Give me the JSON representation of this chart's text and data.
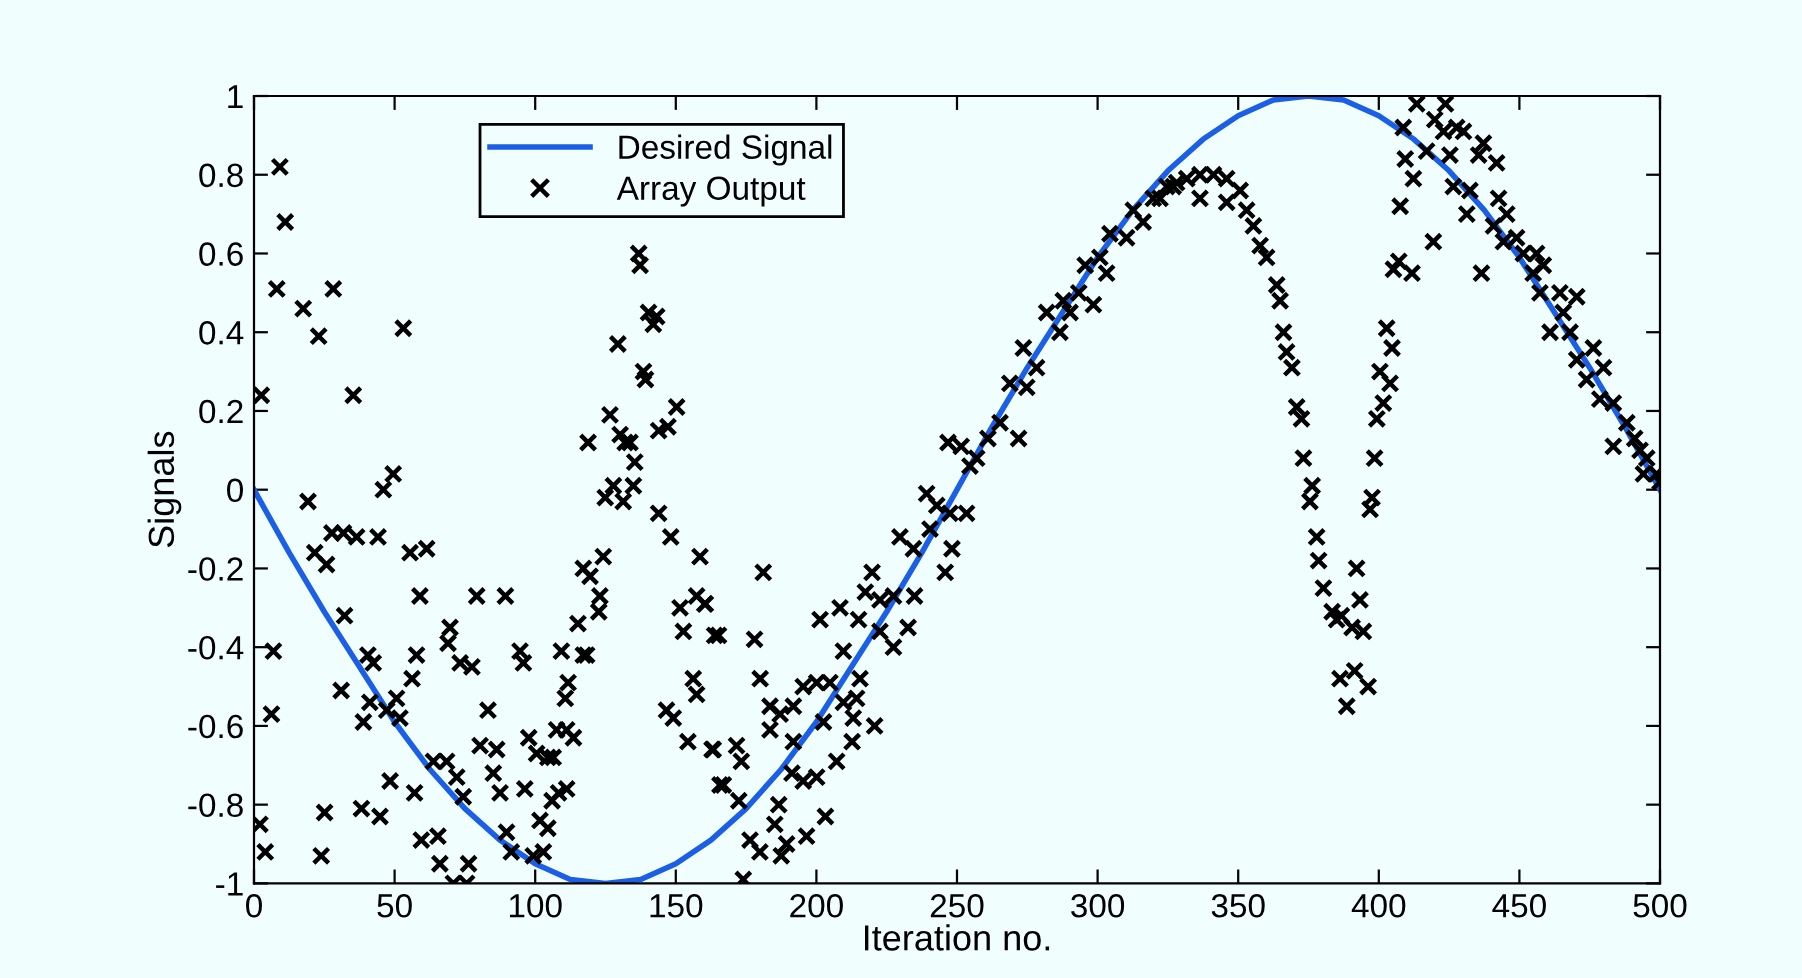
{
  "chart_data": {
    "type": "line",
    "xlabel": "Iteration no.",
    "ylabel": "Signals",
    "xlim": [
      0,
      500
    ],
    "ylim": [
      -1,
      1
    ],
    "xticks": [
      0,
      50,
      100,
      150,
      200,
      250,
      300,
      350,
      400,
      450,
      500
    ],
    "yticks": [
      -1,
      -0.8,
      -0.6,
      -0.4,
      -0.2,
      0,
      0.2,
      0.4,
      0.6,
      0.8,
      1
    ],
    "grid": false,
    "legend": "top",
    "series": [
      {
        "name": "Desired Signal",
        "color": "#1a5fe6",
        "marker": "none",
        "line_style": "solid",
        "x": [
          0,
          12.5,
          25,
          37.5,
          50,
          62.5,
          75,
          87.5,
          100,
          112.5,
          125,
          137.5,
          150,
          162.5,
          175,
          187.5,
          200,
          212.5,
          225,
          237.5,
          250,
          262.5,
          275,
          287.5,
          300,
          312.5,
          325,
          337.5,
          350,
          362.5,
          375,
          387.5,
          400,
          412.5,
          425,
          437.5,
          450,
          462.5,
          475,
          487.5,
          500
        ],
        "values": [
          0,
          -0.16,
          -0.31,
          -0.45,
          -0.59,
          -0.71,
          -0.81,
          -0.89,
          -0.95,
          -0.99,
          -1,
          -0.99,
          -0.95,
          -0.89,
          -0.81,
          -0.71,
          -0.59,
          -0.45,
          -0.31,
          -0.16,
          0,
          0.16,
          0.31,
          0.45,
          0.59,
          0.71,
          0.81,
          0.89,
          0.95,
          0.99,
          1,
          0.99,
          0.95,
          0.89,
          0.81,
          0.71,
          0.59,
          0.45,
          0.31,
          0.16,
          0
        ]
      },
      {
        "name": "Array Output",
        "type": "scatter",
        "color": "#000000",
        "marker": "cross",
        "x": [
          9.2,
          11.1,
          8.1,
          2.6,
          17.5,
          28.2,
          23,
          53.1,
          35.3,
          19.2,
          6.9,
          6.2,
          2.1,
          4,
          21.6,
          25.8,
          27.7,
          31.8,
          36.5,
          44.1,
          46,
          49.5,
          32.2,
          31,
          40.5,
          42.4,
          41.2,
          38.9,
          47.2,
          50.7,
          51.9,
          48.4,
          38.2,
          44.8,
          25.1,
          23.9,
          55.5,
          61.4,
          59,
          57.8,
          56.2,
          57.1,
          63.8,
          68.5,
          72.1,
          74.4,
          59.5,
          65.4,
          66.1,
          70.9,
          75.6,
          76.3,
          69.7,
          69,
          73.3,
          77.5,
          79.2,
          89.4,
          83.2,
          80.4,
          86.3,
          85.1,
          87.5,
          89.8,
          91.5,
          94.6,
          95.8,
          96.3,
          97.7,
          100.5,
          99.3,
          101.7,
          102.9,
          104.5,
          104.5,
          106.4,
          106,
          108.3,
          111.2,
          107.6,
          111.2,
          113.6,
          109.3,
          110.7,
          111.7,
          115.2,
          117.1,
          118.3,
          117.1,
          119.5,
          123,
          122.6,
          124.2,
          124.9,
          127.8,
          131.3,
          134.9,
          135.4,
          130.2,
          132,
          133.7,
          118.8,
          126.6,
          129.4,
          136.8,
          137.3,
          138.5,
          139.2,
          140.3,
          143.2,
          142,
          143.9,
          147.2,
          150.3,
          143.9,
          148.2,
          152.7,
          151.5,
          158.6,
          157.4,
          160.3,
          163.8,
          146.7,
          149.1,
          154.3,
          156.2,
          157.4,
          162.9,
          165.7,
          181.1,
          160.5,
          165.2,
          178,
          180,
          183.5,
          187.1,
          191.8,
          183.5,
          163.3,
          171.6,
          173.3,
          166.9,
          172.4,
          191.8,
          191.3,
          195.3,
          200.1,
          186.6,
          185.2,
          176.4,
          179.9,
          187.5,
          189.4,
          196.5,
          203.2,
          174,
          195.3,
          200.1,
          204.8,
          201.3,
          208.4,
          215,
          209.6,
          215.5,
          202.5,
          209.6,
          214.3,
          213.1,
          220.7,
          207.2,
          212.7,
          217.4,
          219.8,
          222.6,
          227.4,
          222.6,
          227.4,
          232.6,
          229.7,
          234.5,
          234.9,
          240.4,
          245.8,
          248.2,
          239.2,
          242.8,
          247.5,
          253.4,
          246.8,
          251.5,
          254.6,
          257,
          261,
          265.3,
          271.9,
          268.8,
          274.8,
          273.6,
          278.3,
          281.9,
          286.6,
          290.2,
          287.8,
          293.3,
          298.5,
          295.6,
          300.8,
          303.2,
          304.4,
          310.3,
          316.2,
          312.7,
          319.8,
          324.6,
          328.1,
          322.2,
          326.9,
          331.7,
          336.4,
          341.2,
          345.9,
          350.7,
          336.4,
          345.9,
          353,
          355.4,
          357.8,
          360.1,
          363.7,
          364.9,
          366.1,
          367.2,
          369.1,
          370.8,
          372.5,
          373.2,
          376.3,
          375.5,
          377.9,
          378.6,
          380.3,
          383.4,
          386.7,
          390.5,
          394.5,
          385,
          393.3,
          392.1,
          386.2,
          391.4,
          388.6,
          396.2,
          396.9,
          397.6,
          398.5,
          399.3,
          401.6,
          400.4,
          404,
          402.8,
          404.7,
          405.2,
          407.1,
          411.8,
          407.6,
          409.4,
          412.3,
          408.7,
          413.5,
          417,
          423.7,
          419.9,
          423,
          427.7,
          430.1,
          425.3,
          419.4,
          426.5,
          432.4,
          431.3,
          437.2,
          441.9,
          435.5,
          436.5,
          442.6,
          445.5,
          440.8,
          444.3,
          449,
          451.4,
          456.1,
          458.5,
          454.9,
          457.3,
          460.9,
          464.4,
          470.4,
          465.6,
          468,
          470.4,
          476.3,
          479.9,
          473.9,
          478.6,
          483.4,
          483.4,
          488.2,
          491,
          492.9,
          495.3,
          498.8,
          494.1,
          500
        ],
        "values": [
          0.82,
          0.68,
          0.51,
          0.24,
          0.46,
          0.51,
          0.39,
          0.41,
          0.24,
          -0.03,
          -0.41,
          -0.57,
          -0.85,
          -0.92,
          -0.16,
          -0.19,
          -0.11,
          -0.11,
          -0.12,
          -0.12,
          0,
          0.04,
          -0.32,
          -0.51,
          -0.42,
          -0.44,
          -0.54,
          -0.59,
          -0.56,
          -0.53,
          -0.58,
          -0.74,
          -0.81,
          -0.83,
          -0.82,
          -0.93,
          -0.16,
          -0.15,
          -0.27,
          -0.42,
          -0.48,
          -0.77,
          -0.69,
          -0.69,
          -0.73,
          -0.78,
          -0.89,
          -0.88,
          -0.95,
          -1,
          -1,
          -0.95,
          -0.35,
          -0.39,
          -0.44,
          -0.45,
          -0.27,
          -0.27,
          -0.56,
          -0.65,
          -0.66,
          -0.72,
          -0.77,
          -0.87,
          -0.92,
          -0.41,
          -0.44,
          -0.76,
          -0.63,
          -0.67,
          -0.93,
          -0.84,
          -0.92,
          -0.86,
          -0.68,
          -0.68,
          -0.79,
          -0.77,
          -0.76,
          -0.61,
          -0.61,
          -0.63,
          -0.41,
          -0.53,
          -0.49,
          -0.34,
          -0.42,
          -0.42,
          -0.2,
          -0.22,
          -0.27,
          -0.31,
          -0.17,
          -0.02,
          0.01,
          -0.03,
          0.01,
          0.07,
          0.14,
          0.12,
          0.12,
          0.12,
          0.19,
          0.37,
          0.6,
          0.57,
          0.3,
          0.28,
          0.45,
          0.44,
          0.42,
          0.15,
          0.16,
          0.21,
          -0.06,
          -0.12,
          -0.36,
          -0.3,
          -0.17,
          -0.27,
          -0.29,
          -0.37,
          -0.56,
          -0.58,
          -0.64,
          -0.48,
          -0.52,
          -0.66,
          -0.75,
          -0.21,
          -0.29,
          -0.37,
          -0.38,
          -0.48,
          -0.55,
          -0.57,
          -0.55,
          -0.61,
          -0.66,
          -0.65,
          -0.69,
          -0.75,
          -0.79,
          -0.64,
          -0.72,
          -0.74,
          -0.73,
          -0.8,
          -0.85,
          -0.89,
          -0.92,
          -0.93,
          -0.9,
          -0.88,
          -0.83,
          -0.99,
          -0.5,
          -0.49,
          -0.49,
          -0.33,
          -0.3,
          -0.33,
          -0.41,
          -0.48,
          -0.59,
          -0.54,
          -0.53,
          -0.58,
          -0.6,
          -0.69,
          -0.64,
          -0.26,
          -0.21,
          -0.28,
          -0.27,
          -0.36,
          -0.4,
          -0.35,
          -0.12,
          -0.15,
          -0.27,
          -0.1,
          -0.21,
          -0.15,
          -0.01,
          -0.04,
          -0.06,
          -0.06,
          0.12,
          0.11,
          0.06,
          0.08,
          0.13,
          0.17,
          0.13,
          0.27,
          0.26,
          0.36,
          0.31,
          0.45,
          0.4,
          0.45,
          0.48,
          0.5,
          0.47,
          0.57,
          0.59,
          0.55,
          0.65,
          0.64,
          0.68,
          0.71,
          0.74,
          0.77,
          0.78,
          0.74,
          0.77,
          0.79,
          0.8,
          0.8,
          0.79,
          0.76,
          0.74,
          0.73,
          0.71,
          0.67,
          0.62,
          0.59,
          0.52,
          0.48,
          0.4,
          0.35,
          0.31,
          0.21,
          0.18,
          0.08,
          0.01,
          -0.03,
          -0.12,
          -0.18,
          -0.25,
          -0.31,
          -0.32,
          -0.35,
          -0.36,
          -0.33,
          -0.28,
          -0.2,
          -0.48,
          -0.46,
          -0.55,
          -0.5,
          -0.05,
          -0.02,
          0.08,
          0.18,
          0.22,
          0.3,
          0.27,
          0.41,
          0.36,
          0.56,
          0.58,
          0.55,
          0.72,
          0.84,
          0.79,
          0.92,
          0.98,
          0.86,
          0.98,
          0.94,
          0.91,
          0.92,
          0.91,
          0.85,
          0.63,
          0.77,
          0.76,
          0.7,
          0.88,
          0.83,
          0.85,
          0.55,
          0.74,
          0.7,
          0.67,
          0.63,
          0.64,
          0.6,
          0.6,
          0.57,
          0.55,
          0.5,
          0.4,
          0.5,
          0.49,
          0.45,
          0.4,
          0.33,
          0.36,
          0.31,
          0.28,
          0.23,
          0.22,
          0.11,
          0.17,
          0.13,
          0.1,
          0.08,
          0.04,
          0.04,
          0.02
        ]
      }
    ]
  }
}
